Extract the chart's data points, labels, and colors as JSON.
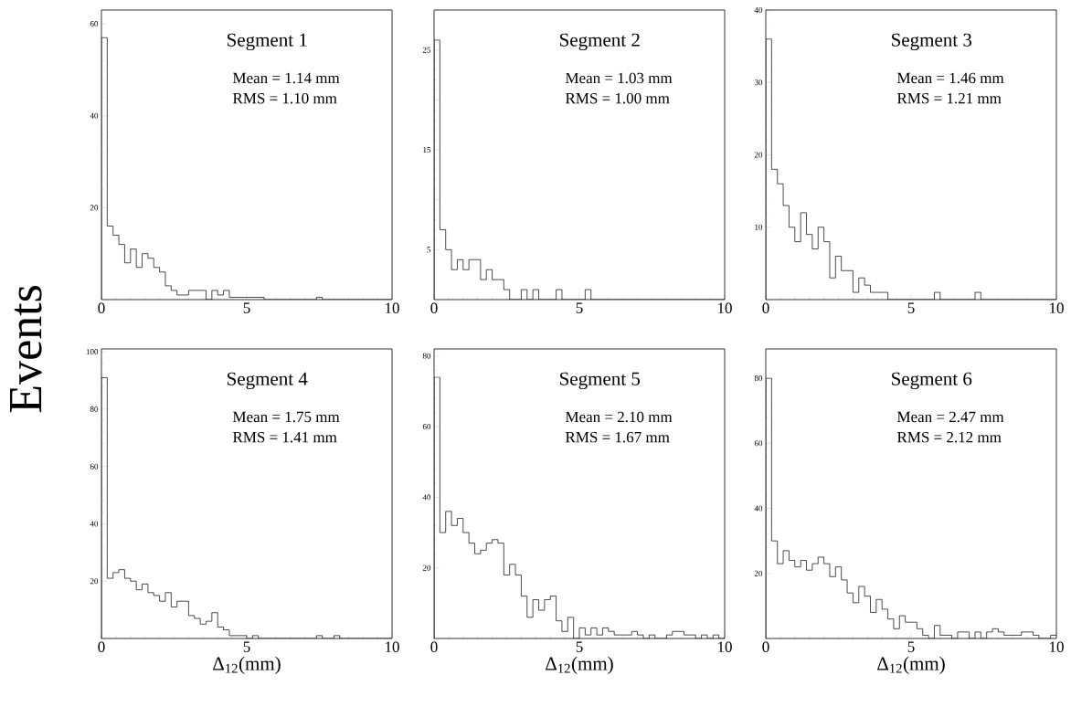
{
  "chart_data": [
    {
      "type": "histogram",
      "title": "Segment 1",
      "ylabel": "Events",
      "annotations": [
        "Mean = 1.14 mm",
        "RMS = 1.10 mm"
      ],
      "color": "#000000",
      "bins": [
        0,
        0.2,
        0.4,
        0.6,
        0.8,
        1,
        1.2,
        1.4,
        1.6,
        1.8,
        2,
        2.2,
        2.4,
        2.6,
        2.8,
        3,
        3.2,
        3.4,
        3.6,
        3.8,
        4,
        4.2,
        4.4,
        4.6,
        4.8,
        5,
        5.2,
        5.4,
        5.6,
        5.8,
        6,
        6.2,
        6.4,
        6.6,
        6.8,
        7,
        7.2,
        7.4,
        7.6,
        7.8,
        8,
        8.2,
        8.4,
        8.6,
        8.8,
        9,
        9.2,
        9.4,
        9.6,
        9.8,
        10
      ],
      "values": [
        57,
        16,
        14,
        12,
        8,
        11,
        7,
        10,
        9,
        7,
        6,
        3,
        2,
        1,
        1,
        2,
        2,
        2,
        0,
        2,
        1,
        2,
        0.5,
        0.5,
        0.5,
        0.5,
        0.5,
        0.5,
        0,
        0,
        0,
        0,
        0,
        0,
        0,
        0,
        0,
        0.5,
        0,
        0,
        0,
        0,
        0,
        0,
        0,
        0,
        0,
        0,
        0,
        0
      ],
      "xlim": [
        0,
        10
      ],
      "ylim": [
        0,
        63
      ],
      "xticks": [
        0,
        5,
        10
      ],
      "yticks": [
        20,
        40,
        60
      ]
    },
    {
      "type": "histogram",
      "title": "Segment 2",
      "annotations": [
        "Mean = 1.03 mm",
        "RMS = 1.00 mm"
      ],
      "color": "#000000",
      "bins": [
        0,
        0.2,
        0.4,
        0.6,
        0.8,
        1,
        1.2,
        1.4,
        1.6,
        1.8,
        2,
        2.2,
        2.4,
        2.6,
        2.8,
        3,
        3.2,
        3.4,
        3.6,
        3.8,
        4,
        4.2,
        4.4,
        4.6,
        4.8,
        5,
        5.2,
        5.4,
        5.6,
        5.8,
        6,
        6.2,
        6.4,
        6.6,
        6.8,
        7,
        7.2,
        7.4,
        7.6,
        7.8,
        8,
        8.2,
        8.4,
        8.6,
        8.8,
        9,
        9.2,
        9.4,
        9.6,
        9.8,
        10
      ],
      "values": [
        26,
        7,
        5,
        3,
        4,
        3,
        4,
        4,
        2,
        3,
        2,
        2,
        1,
        0,
        0,
        1,
        0,
        1,
        0,
        0,
        0,
        1,
        0,
        0,
        0,
        0,
        1,
        0,
        0,
        0,
        0,
        0,
        0,
        0,
        0,
        0,
        0,
        0,
        0,
        0,
        0,
        0,
        0,
        0,
        0,
        0,
        0,
        0,
        0,
        0
      ],
      "xlim": [
        0,
        10
      ],
      "ylim": [
        0,
        29
      ],
      "xticks": [
        0,
        5,
        10
      ],
      "yticks": [
        5,
        {
          "value": 10,
          "label": null
        },
        15,
        {
          "value": 20,
          "label": null
        },
        25
      ]
    },
    {
      "type": "histogram",
      "title": "Segment 3",
      "annotations": [
        "Mean = 1.46 mm",
        "RMS = 1.21 mm"
      ],
      "color": "#000000",
      "bins": [
        0,
        0.2,
        0.4,
        0.6,
        0.8,
        1,
        1.2,
        1.4,
        1.6,
        1.8,
        2,
        2.2,
        2.4,
        2.6,
        2.8,
        3,
        3.2,
        3.4,
        3.6,
        3.8,
        4,
        4.2,
        4.4,
        4.6,
        4.8,
        5,
        5.2,
        5.4,
        5.6,
        5.8,
        6,
        6.2,
        6.4,
        6.6,
        6.8,
        7,
        7.2,
        7.4,
        7.6,
        7.8,
        8,
        8.2,
        8.4,
        8.6,
        8.8,
        9,
        9.2,
        9.4,
        9.6,
        9.8,
        10
      ],
      "values": [
        36,
        18,
        16,
        13,
        10,
        8,
        12,
        9,
        7,
        10,
        8,
        3,
        6,
        4,
        4,
        1,
        3,
        2,
        1,
        1,
        1,
        0,
        0,
        0,
        0,
        0,
        0,
        0,
        0,
        1,
        0,
        0,
        0,
        0,
        0,
        0,
        1,
        0,
        0,
        0,
        0,
        0,
        0,
        0,
        0,
        0,
        0,
        0,
        0,
        0
      ],
      "xlim": [
        0,
        10
      ],
      "ylim": [
        0,
        40
      ],
      "xticks": [
        0,
        5,
        10
      ],
      "yticks": [
        10,
        20,
        30,
        40
      ]
    },
    {
      "type": "histogram",
      "title": "Segment 4",
      "xlabel": "Δ$_{12}$(mm)",
      "annotations": [
        "Mean = 1.75 mm",
        "RMS = 1.41 mm"
      ],
      "color": "#000000",
      "bins": [
        0,
        0.2,
        0.4,
        0.6,
        0.8,
        1,
        1.2,
        1.4,
        1.6,
        1.8,
        2,
        2.2,
        2.4,
        2.6,
        2.8,
        3,
        3.2,
        3.4,
        3.6,
        3.8,
        4,
        4.2,
        4.4,
        4.6,
        4.8,
        5,
        5.2,
        5.4,
        5.6,
        5.8,
        6,
        6.2,
        6.4,
        6.6,
        6.8,
        7,
        7.2,
        7.4,
        7.6,
        7.8,
        8,
        8.2,
        8.4,
        8.6,
        8.8,
        9,
        9.2,
        9.4,
        9.6,
        9.8,
        10
      ],
      "values": [
        91,
        21,
        23,
        24,
        21,
        20,
        17,
        19,
        16,
        15,
        13,
        16,
        11,
        13,
        13,
        8,
        7,
        5,
        6,
        9,
        4,
        3,
        1,
        1,
        1,
        0,
        1,
        0,
        0,
        0,
        0,
        0,
        0,
        0,
        0,
        0,
        0,
        1,
        0,
        0,
        1,
        0,
        0,
        0,
        0,
        0,
        0,
        0,
        0,
        0
      ],
      "xlim": [
        0,
        10
      ],
      "ylim": [
        0,
        101
      ],
      "xticks": [
        0,
        5,
        10
      ],
      "yticks": [
        20,
        40,
        60,
        80,
        100
      ]
    },
    {
      "type": "histogram",
      "title": "Segment 5",
      "xlabel": "Δ$_{12}$(mm)",
      "annotations": [
        "Mean = 2.10 mm",
        "RMS = 1.67 mm"
      ],
      "color": "#000000",
      "bins": [
        0,
        0.2,
        0.4,
        0.6,
        0.8,
        1,
        1.2,
        1.4,
        1.6,
        1.8,
        2,
        2.2,
        2.4,
        2.6,
        2.8,
        3,
        3.2,
        3.4,
        3.6,
        3.8,
        4,
        4.2,
        4.4,
        4.6,
        4.8,
        5,
        5.2,
        5.4,
        5.6,
        5.8,
        6,
        6.2,
        6.4,
        6.6,
        6.8,
        7,
        7.2,
        7.4,
        7.6,
        7.8,
        8,
        8.2,
        8.4,
        8.6,
        8.8,
        9,
        9.2,
        9.4,
        9.6,
        9.8,
        10
      ],
      "values": [
        74,
        30,
        36,
        32,
        34,
        30,
        27,
        24,
        25,
        27,
        28,
        27,
        18,
        21,
        18,
        12,
        6,
        11,
        8,
        11,
        12,
        5,
        2,
        6,
        0,
        3,
        1,
        3,
        1,
        3,
        2,
        1,
        1,
        1,
        2,
        1,
        0,
        1,
        0,
        0,
        1,
        2,
        2,
        1,
        1,
        0,
        1,
        0,
        1,
        0
      ],
      "xlim": [
        0,
        10
      ],
      "ylim": [
        0,
        82
      ],
      "xticks": [
        0,
        5,
        10
      ],
      "yticks": [
        20,
        40,
        60,
        80
      ]
    },
    {
      "type": "histogram",
      "title": "Segment 6",
      "xlabel": "Δ$_{12}$(mm)",
      "annotations": [
        "Mean = 2.47 mm",
        "RMS = 2.12 mm"
      ],
      "color": "#000000",
      "bins": [
        0,
        0.2,
        0.4,
        0.6,
        0.8,
        1,
        1.2,
        1.4,
        1.6,
        1.8,
        2,
        2.2,
        2.4,
        2.6,
        2.8,
        3,
        3.2,
        3.4,
        3.6,
        3.8,
        4,
        4.2,
        4.4,
        4.6,
        4.8,
        5,
        5.2,
        5.4,
        5.6,
        5.8,
        6,
        6.2,
        6.4,
        6.6,
        6.8,
        7,
        7.2,
        7.4,
        7.6,
        7.8,
        8,
        8.2,
        8.4,
        8.6,
        8.8,
        9,
        9.2,
        9.4,
        9.6,
        9.8,
        10
      ],
      "values": [
        80,
        30,
        23,
        27,
        24,
        22,
        24,
        21,
        23,
        25,
        23,
        19,
        22,
        18,
        14,
        11,
        16,
        13,
        8,
        12,
        9,
        6,
        3,
        7,
        5,
        5,
        3,
        1,
        0,
        4,
        1,
        1,
        0,
        2,
        2,
        0,
        2,
        0,
        2,
        3,
        2,
        1,
        1,
        1,
        2,
        2,
        1,
        0,
        0,
        1
      ],
      "xlim": [
        0,
        10
      ],
      "ylim": [
        0,
        89
      ],
      "xticks": [
        0,
        5,
        10
      ],
      "yticks": [
        20,
        40,
        60,
        80
      ]
    }
  ]
}
